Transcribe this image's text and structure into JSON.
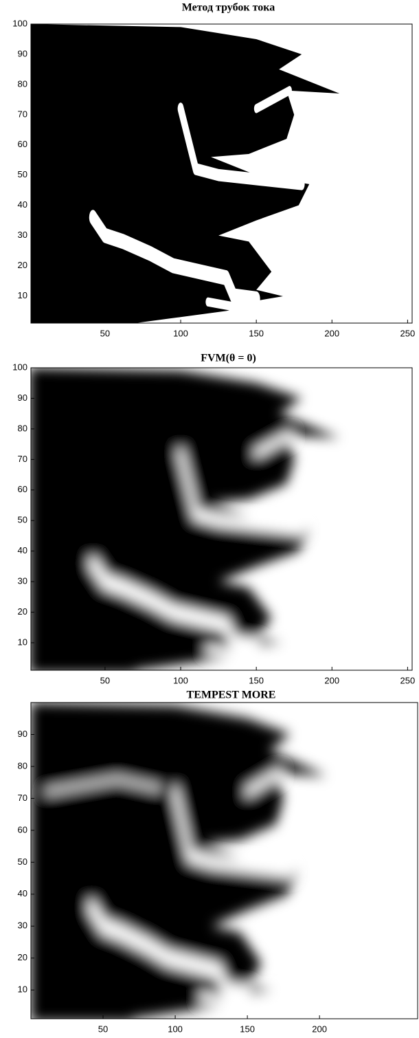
{
  "chart_data": [
    {
      "type": "image",
      "title": "Метод трубок тока",
      "xlim": [
        1,
        253
      ],
      "ylim": [
        1,
        100
      ],
      "xticks": [
        50,
        100,
        150,
        200,
        250
      ],
      "yticks": [
        10,
        20,
        30,
        40,
        50,
        60,
        70,
        80,
        90,
        100
      ]
    },
    {
      "type": "image",
      "title": "FVM(θ = 0)",
      "xlim": [
        1,
        253
      ],
      "ylim": [
        1,
        100
      ],
      "xticks": [
        50,
        100,
        150,
        200,
        250
      ],
      "yticks": [
        10,
        20,
        30,
        40,
        50,
        60,
        70,
        80,
        90,
        100
      ]
    },
    {
      "type": "image",
      "title": "TEMPEST MORE",
      "xlim": [
        0,
        268
      ],
      "ylim": [
        1,
        100
      ],
      "xticks": [
        50,
        100,
        150,
        200
      ],
      "yticks": [
        10,
        20,
        30,
        40,
        50,
        60,
        70,
        80,
        90
      ]
    }
  ]
}
